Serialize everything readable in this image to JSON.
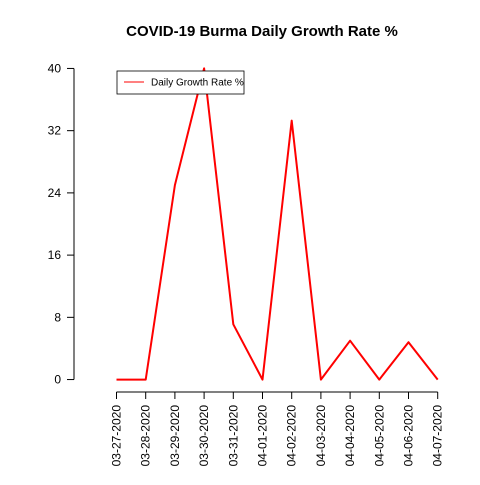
{
  "chart_data": {
    "type": "line",
    "title": "COVID-19 Burma Daily Growth Rate %",
    "xlabel": "",
    "ylabel": "",
    "categories": [
      "03-27-2020",
      "03-28-2020",
      "03-29-2020",
      "03-30-2020",
      "03-31-2020",
      "04-01-2020",
      "04-02-2020",
      "04-03-2020",
      "04-04-2020",
      "04-05-2020",
      "04-06-2020",
      "04-07-2020"
    ],
    "series": [
      {
        "name": "Daily Growth Rate %",
        "color": "#ff0000",
        "values": [
          0,
          0,
          25,
          40,
          7.1,
          0,
          33.3,
          0,
          5,
          0,
          4.8,
          0
        ]
      }
    ],
    "yticks": [
      0,
      8,
      16,
      24,
      32,
      40
    ],
    "ylim": [
      -1.6,
      41.6
    ],
    "grid": false,
    "legend_position": "top-left"
  }
}
